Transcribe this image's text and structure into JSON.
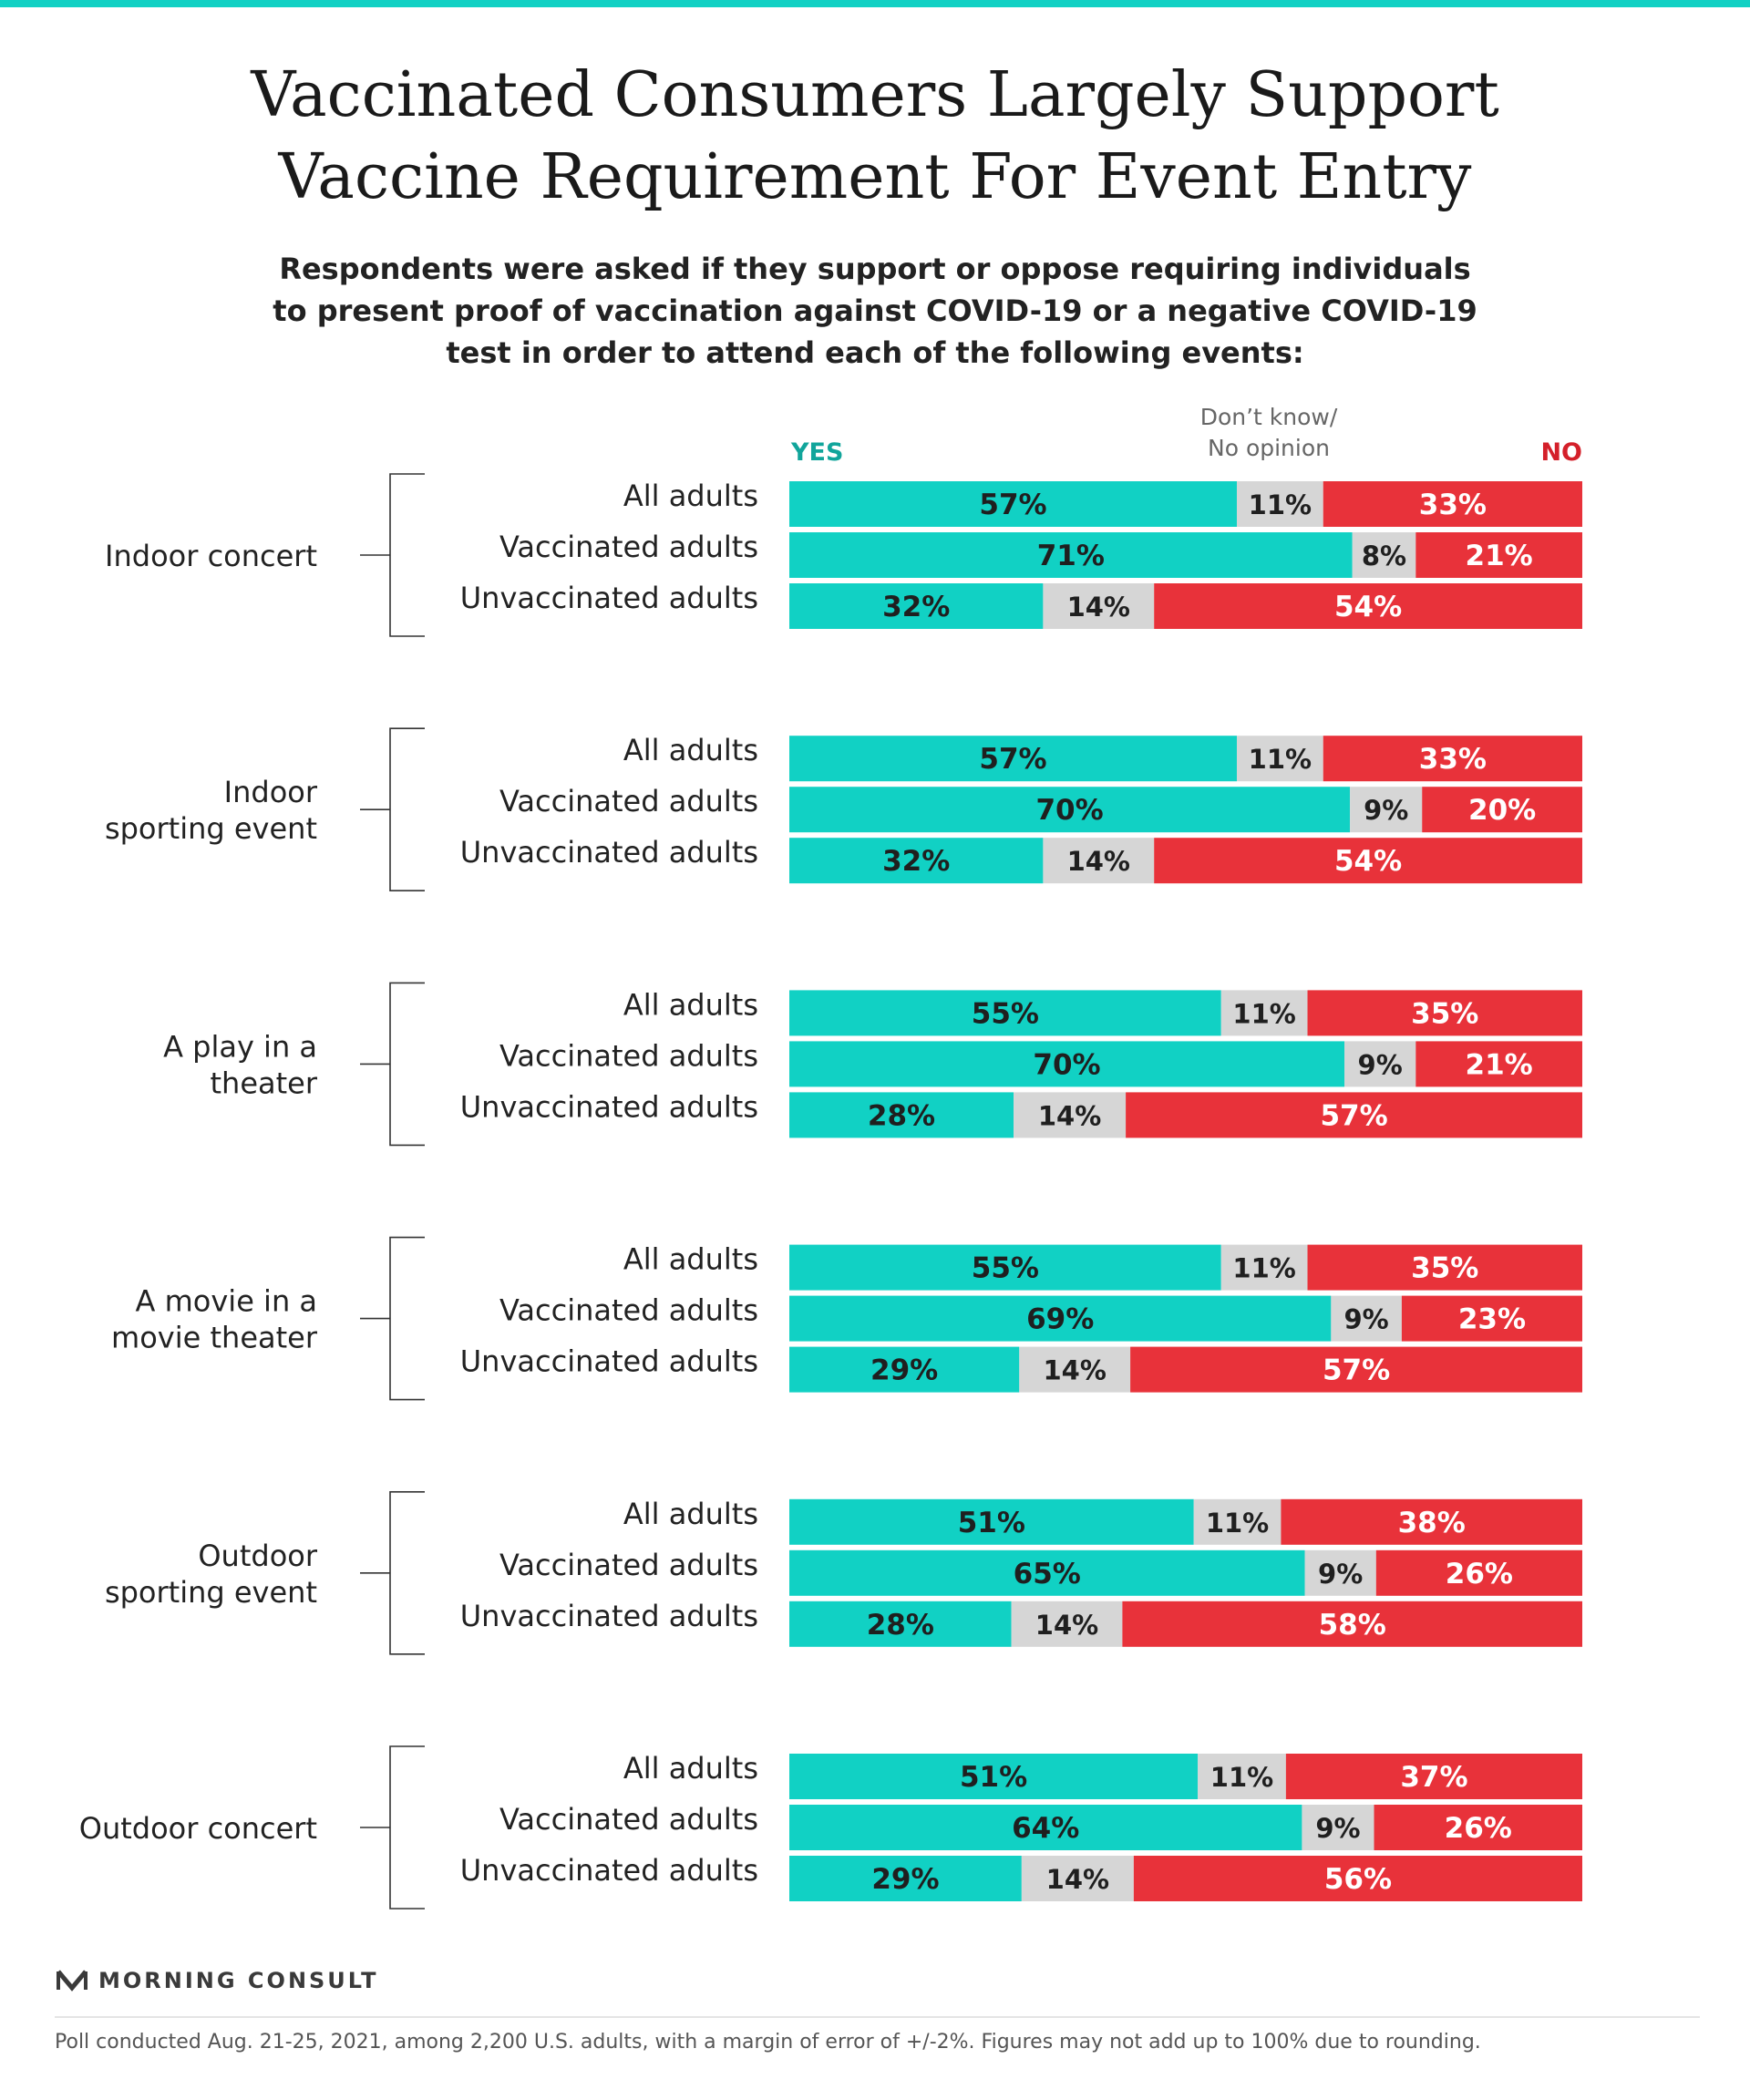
{
  "header": {
    "title_line1": "Vaccinated Consumers Largely Support",
    "title_line2": "Vaccine Requirement For Event Entry",
    "subtitle_line1": "Respondents were asked if they support or oppose requiring individuals",
    "subtitle_line2": "to present proof of vaccination against COVID-19 or a negative COVID-19",
    "subtitle_line3": "test in order to attend each of the following events:"
  },
  "legend": {
    "yes": "YES",
    "dont_know_line1": "Don’t know/",
    "dont_know_line2": "No opinion",
    "no": "NO"
  },
  "colors": {
    "yes": "#11d1c4",
    "dont_know": "#d6d6d6",
    "no": "#e8323a",
    "yes_label": "#11a59b",
    "no_label": "#d4202a"
  },
  "chart_data": {
    "type": "bar",
    "orientation": "horizontal",
    "stacked": true,
    "normalized": true,
    "series_names": [
      "YES",
      "Don’t know/ No opinion",
      "NO"
    ],
    "groups": [
      {
        "label": [
          "Indoor concert"
        ],
        "rows": [
          {
            "label": "All adults",
            "values": [
              57,
              11,
              33
            ]
          },
          {
            "label": "Vaccinated adults",
            "values": [
              71,
              8,
              21
            ]
          },
          {
            "label": "Unvaccinated adults",
            "values": [
              32,
              14,
              54
            ]
          }
        ]
      },
      {
        "label": [
          "Indoor",
          "sporting event"
        ],
        "rows": [
          {
            "label": "All adults",
            "values": [
              57,
              11,
              33
            ]
          },
          {
            "label": "Vaccinated adults",
            "values": [
              70,
              9,
              20
            ]
          },
          {
            "label": "Unvaccinated adults",
            "values": [
              32,
              14,
              54
            ]
          }
        ]
      },
      {
        "label": [
          "A play in a",
          "theater"
        ],
        "rows": [
          {
            "label": "All adults",
            "values": [
              55,
              11,
              35
            ]
          },
          {
            "label": "Vaccinated adults",
            "values": [
              70,
              9,
              21
            ]
          },
          {
            "label": "Unvaccinated adults",
            "values": [
              28,
              14,
              57
            ]
          }
        ]
      },
      {
        "label": [
          "A movie in a",
          "movie theater"
        ],
        "rows": [
          {
            "label": "All adults",
            "values": [
              55,
              11,
              35
            ]
          },
          {
            "label": "Vaccinated adults",
            "values": [
              69,
              9,
              23
            ]
          },
          {
            "label": "Unvaccinated adults",
            "values": [
              29,
              14,
              57
            ]
          }
        ]
      },
      {
        "label": [
          "Outdoor",
          "sporting event"
        ],
        "rows": [
          {
            "label": "All adults",
            "values": [
              51,
              11,
              38
            ]
          },
          {
            "label": "Vaccinated adults",
            "values": [
              65,
              9,
              26
            ]
          },
          {
            "label": "Unvaccinated adults",
            "values": [
              28,
              14,
              58
            ]
          }
        ]
      },
      {
        "label": [
          "Outdoor concert"
        ],
        "rows": [
          {
            "label": "All adults",
            "values": [
              51,
              11,
              37
            ]
          },
          {
            "label": "Vaccinated adults",
            "values": [
              64,
              9,
              26
            ]
          },
          {
            "label": "Unvaccinated adults",
            "values": [
              29,
              14,
              56
            ]
          }
        ]
      }
    ]
  },
  "footer": {
    "logo_text": "MORNING CONSULT",
    "logo_icon": "morning-consult-m-logo",
    "note": "Poll conducted Aug. 21-25, 2021, among 2,200 U.S. adults, with a margin of error of +/-2%. Figures may not add up to 100% due to rounding."
  }
}
